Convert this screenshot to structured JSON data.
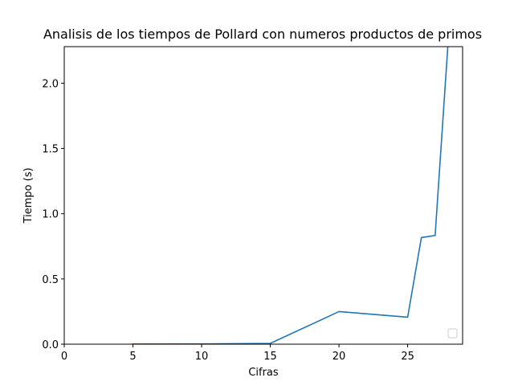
{
  "chart_data": {
    "type": "line",
    "title": "Analisis de los tiempos de Pollard con numeros productos de primos",
    "xlabel": "Cifras",
    "ylabel": "Tiempo (s)",
    "xlim": [
      0,
      29
    ],
    "ylim": [
      0,
      2.28
    ],
    "xticks": [
      0,
      5,
      10,
      15,
      20,
      25
    ],
    "xtick_labels": [
      "0",
      "5",
      "10",
      "15",
      "20",
      "25"
    ],
    "yticks": [
      0,
      0.5,
      1.0,
      1.5,
      2.0
    ],
    "ytick_labels": [
      "0.0",
      "0.5",
      "1.0",
      "1.5",
      "2.0"
    ],
    "grid": false,
    "legend": "lower-right",
    "series": [
      {
        "color": "#1f77b4",
        "x": [
          5,
          10,
          15,
          20,
          25,
          26,
          27,
          28
        ],
        "y": [
          0.001,
          0.002,
          0.006,
          0.25,
          0.207,
          0.817,
          0.833,
          2.4
        ]
      }
    ]
  }
}
